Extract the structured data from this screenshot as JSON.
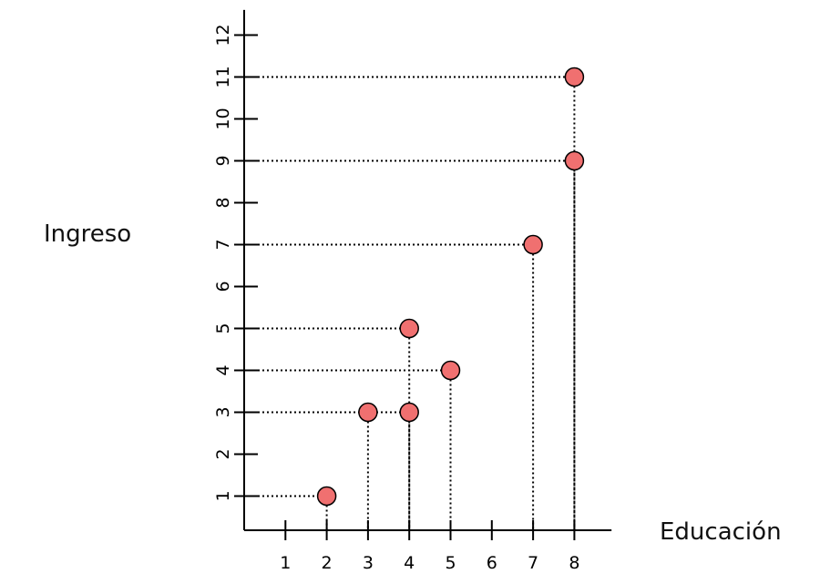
{
  "chart_data": {
    "type": "scatter",
    "xlabel": "Educación",
    "ylabel": "Ingreso",
    "x_ticks": [
      1,
      2,
      3,
      4,
      5,
      6,
      7,
      8
    ],
    "x_tick_labels": [
      "1",
      "2",
      "3",
      "4",
      "5",
      "6",
      "7",
      "8"
    ],
    "y_ticks": [
      1,
      2,
      3,
      4,
      5,
      6,
      7,
      8,
      9,
      10,
      11,
      12
    ],
    "y_tick_labels": [
      "1",
      "2",
      "3",
      "4",
      "5",
      "6",
      "7",
      "8",
      "9",
      "10",
      "11",
      "12"
    ],
    "xlim": [
      0,
      8.9
    ],
    "ylim": [
      0.2,
      12.6
    ],
    "grid": false,
    "drop_lines": true,
    "point_color": "#f07070",
    "points": [
      {
        "x": 2,
        "y": 1
      },
      {
        "x": 3,
        "y": 3
      },
      {
        "x": 4,
        "y": 3
      },
      {
        "x": 4,
        "y": 5
      },
      {
        "x": 5,
        "y": 4
      },
      {
        "x": 7,
        "y": 7
      },
      {
        "x": 8,
        "y": 9
      },
      {
        "x": 8,
        "y": 11
      }
    ]
  }
}
